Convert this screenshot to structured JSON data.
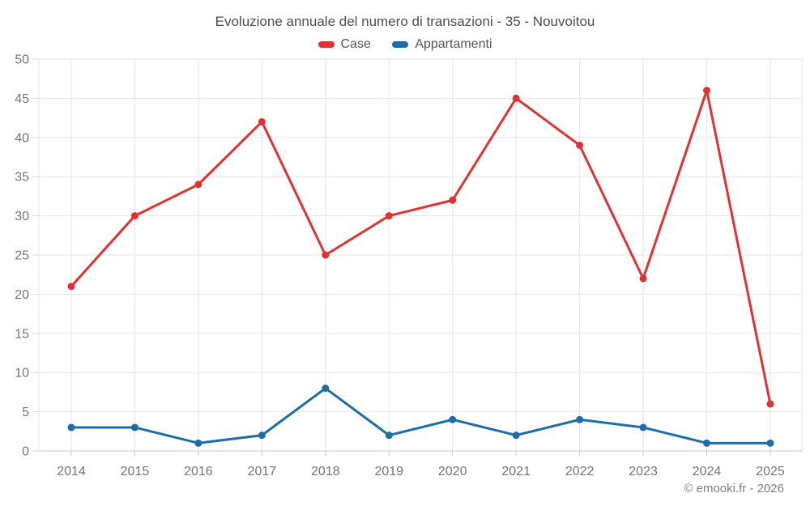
{
  "page": {
    "footer": "© emooki.fr - 2026"
  },
  "colors": {
    "grid": "#e6e6e6",
    "axis_line": "#c9c9c9",
    "tick": "#d9d9d9",
    "tick_label": "#757575",
    "title_text": "#4f4f4f",
    "footer_text": "#7f7f7f",
    "case_red": "#e03232",
    "appartamenti_blue": "#1e6da8"
  },
  "chart_data": {
    "type": "line",
    "title": "Evoluzione annuale del numero di transazioni - 35 - Nouvoitou",
    "xlabel": "",
    "ylabel": "",
    "categories": [
      "2014",
      "2015",
      "2016",
      "2017",
      "2018",
      "2019",
      "2020",
      "2021",
      "2022",
      "2023",
      "2024",
      "2025"
    ],
    "series": [
      {
        "name": "Case",
        "color": "#e03232",
        "values": [
          21,
          30,
          34,
          42,
          25,
          30,
          32,
          45,
          39,
          22,
          46,
          6
        ]
      },
      {
        "name": "Appartamenti",
        "color": "#1e6da8",
        "values": [
          3,
          3,
          1,
          2,
          8,
          2,
          4,
          2,
          4,
          3,
          1,
          1
        ]
      }
    ],
    "ylim": [
      0,
      50
    ],
    "ytick_step": 5,
    "grid": true,
    "legend_position": "top"
  }
}
